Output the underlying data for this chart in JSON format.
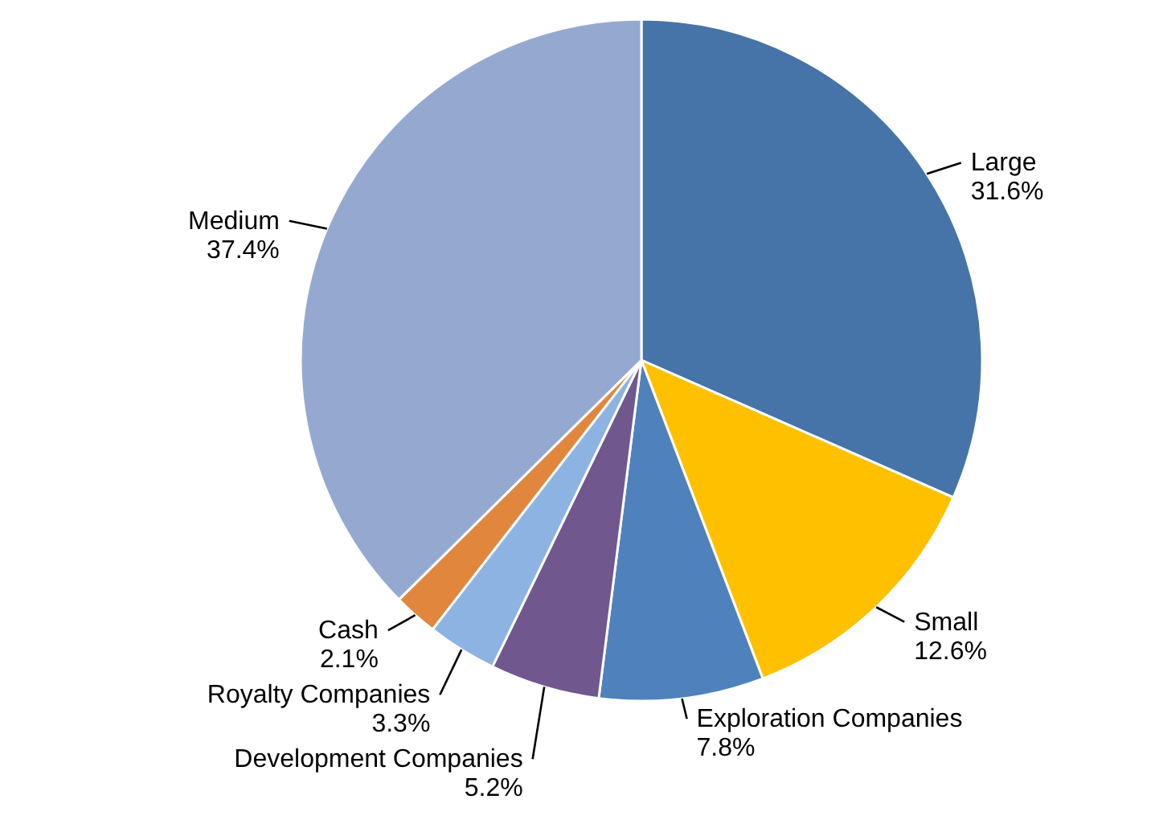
{
  "chart_data": {
    "type": "pie",
    "categories": [
      "Large",
      "Small",
      "Exploration Companies",
      "Development Companies",
      "Royalty Companies",
      "Cash",
      "Medium"
    ],
    "values": [
      31.6,
      12.6,
      7.8,
      5.2,
      3.3,
      2.1,
      37.4
    ],
    "value_labels": [
      "31.6%",
      "12.6%",
      "7.8%",
      "5.2%",
      "3.3%",
      "2.1%",
      "37.4%"
    ],
    "colors": [
      "#4674a8",
      "#ffc000",
      "#4f81bd",
      "#70588f",
      "#8db3e2",
      "#e0873d",
      "#95a9d0"
    ]
  }
}
